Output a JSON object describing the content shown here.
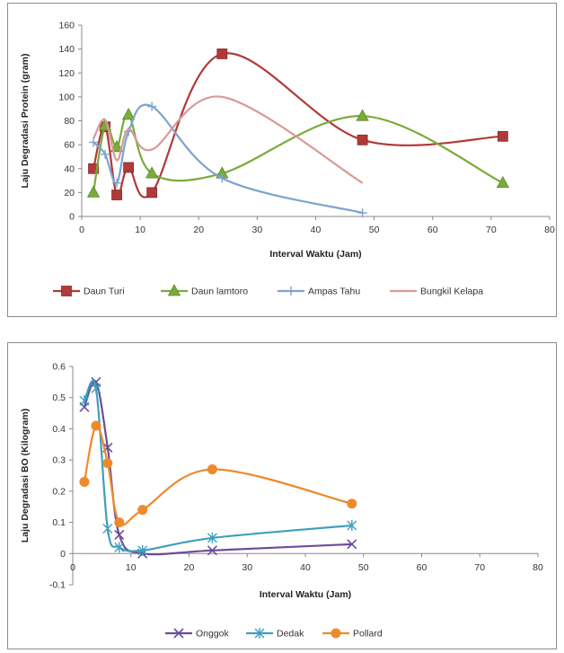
{
  "chart_data": [
    {
      "type": "line",
      "smooth": true,
      "xlabel": "Interval Waktu (Jam)",
      "ylabel": "Laju Degradasi Protein (gram)",
      "xlim": [
        0,
        80
      ],
      "ylim": [
        0,
        160
      ],
      "xticks": [
        0,
        10,
        20,
        30,
        40,
        50,
        60,
        70,
        80
      ],
      "yticks": [
        0,
        20,
        40,
        60,
        80,
        100,
        120,
        140,
        160
      ],
      "grid": false,
      "legend_position": "bottom",
      "series": [
        {
          "name": "Daun Turi",
          "color": "#b03a3a",
          "marker": "square",
          "x": [
            2,
            4,
            6,
            8,
            12,
            24,
            48,
            72
          ],
          "y": [
            40,
            75,
            18,
            41,
            20,
            136,
            64,
            67
          ]
        },
        {
          "name": "Daun lamtoro",
          "color": "#7aab3c",
          "marker": "triangle",
          "x": [
            2,
            4,
            6,
            8,
            12,
            24,
            48,
            72
          ],
          "y": [
            20,
            76,
            58,
            85,
            36,
            36,
            84,
            28
          ]
        },
        {
          "name": "Ampas Tahu",
          "color": "#7ea3cf",
          "marker": "cross",
          "x": [
            2,
            4,
            6,
            8,
            12,
            24,
            48
          ],
          "y": [
            62,
            52,
            28,
            71,
            92,
            32,
            3
          ]
        },
        {
          "name": "Bungkil Kelapa",
          "color": "#d89a98",
          "marker": "none",
          "x": [
            2,
            4,
            6,
            8,
            12,
            24,
            48
          ],
          "y": [
            65,
            81,
            47,
            73,
            56,
            100,
            28
          ]
        }
      ]
    },
    {
      "type": "line",
      "smooth": true,
      "xlabel": "Interval Waktu (Jam)",
      "ylabel": "Laju Degradasi BO (Kilogram)",
      "xlim": [
        0,
        80
      ],
      "ylim": [
        -0.1,
        0.6
      ],
      "xticks": [
        0,
        10,
        20,
        30,
        40,
        50,
        60,
        70,
        80
      ],
      "yticks": [
        "-0.1",
        "0",
        "0.1",
        "0.2",
        "0.3",
        "0.4",
        "0.5",
        "0.6"
      ],
      "grid": false,
      "legend_position": "bottom",
      "series": [
        {
          "name": "Onggok",
          "color": "#6a4d9a",
          "marker": "x",
          "x": [
            2,
            4,
            6,
            8,
            12,
            24,
            48
          ],
          "y": [
            0.47,
            0.55,
            0.34,
            0.06,
            0.0,
            0.01,
            0.03
          ]
        },
        {
          "name": "Dedak",
          "color": "#3e9fbe",
          "marker": "star",
          "x": [
            2,
            4,
            6,
            8,
            12,
            24,
            48
          ],
          "y": [
            0.49,
            0.53,
            0.08,
            0.02,
            0.01,
            0.05,
            0.09
          ]
        },
        {
          "name": "Pollard",
          "color": "#ee8a2b",
          "marker": "circle",
          "x": [
            2,
            4,
            6,
            8,
            12,
            24,
            48
          ],
          "y": [
            0.23,
            0.41,
            0.29,
            0.1,
            0.14,
            0.27,
            0.16
          ]
        }
      ]
    }
  ]
}
